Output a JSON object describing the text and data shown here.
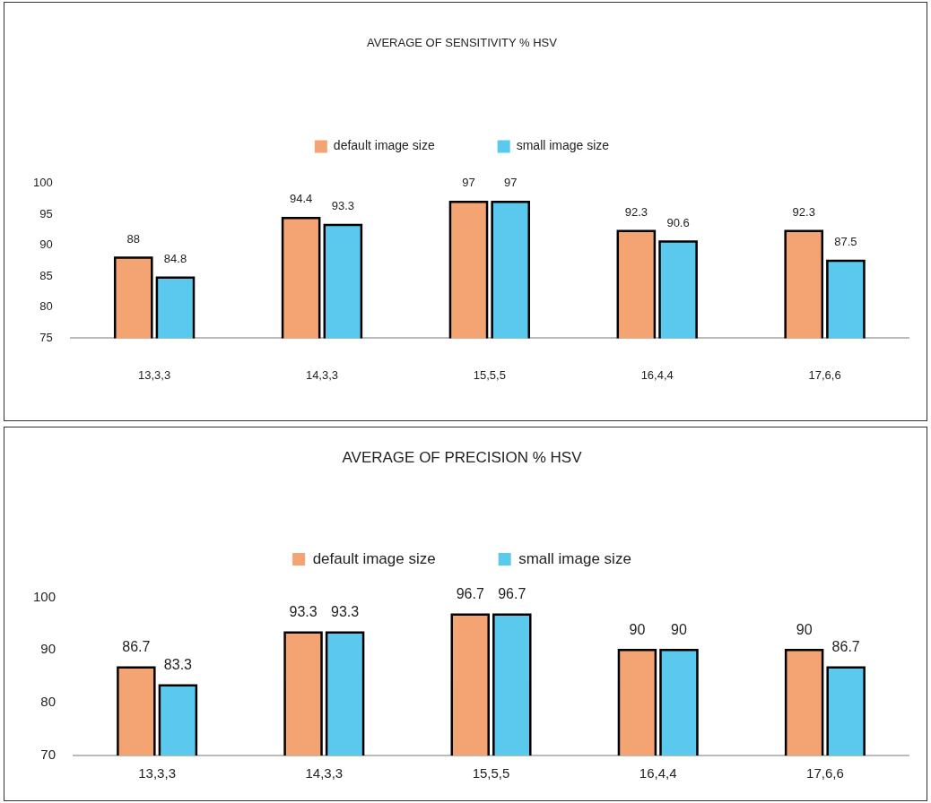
{
  "chart_data": [
    {
      "type": "bar",
      "title": "AVERAGE OF SENSITIVITY % HSV",
      "categories": [
        "13,3,3",
        "14,3,3",
        "15,5,5",
        "16,4,4",
        "17,6,6"
      ],
      "series": [
        {
          "name": "default image size",
          "color": "#f4a372",
          "values": [
            88,
            94.4,
            97,
            92.3,
            92.3
          ]
        },
        {
          "name": "small image size",
          "color": "#5bc8ee",
          "values": [
            84.8,
            93.3,
            97,
            90.6,
            87.5
          ]
        }
      ],
      "ylim": [
        75,
        100
      ],
      "yticks": [
        75,
        80,
        85,
        90,
        95,
        100
      ],
      "legend": "top",
      "data_labels": true
    },
    {
      "type": "bar",
      "title": "AVERAGE OF PRECISION % HSV",
      "categories": [
        "13,3,3",
        "14,3,3",
        "15,5,5",
        "16,4,4",
        "17,6,6"
      ],
      "series": [
        {
          "name": "default image size",
          "color": "#f4a372",
          "values": [
            86.7,
            93.3,
            96.7,
            90,
            90
          ]
        },
        {
          "name": "small image size",
          "color": "#5bc8ee",
          "values": [
            83.3,
            93.3,
            96.7,
            90,
            86.7
          ]
        }
      ],
      "ylim": [
        70,
        100
      ],
      "yticks": [
        70,
        80,
        90,
        100
      ],
      "legend": "top",
      "data_labels": true
    }
  ]
}
